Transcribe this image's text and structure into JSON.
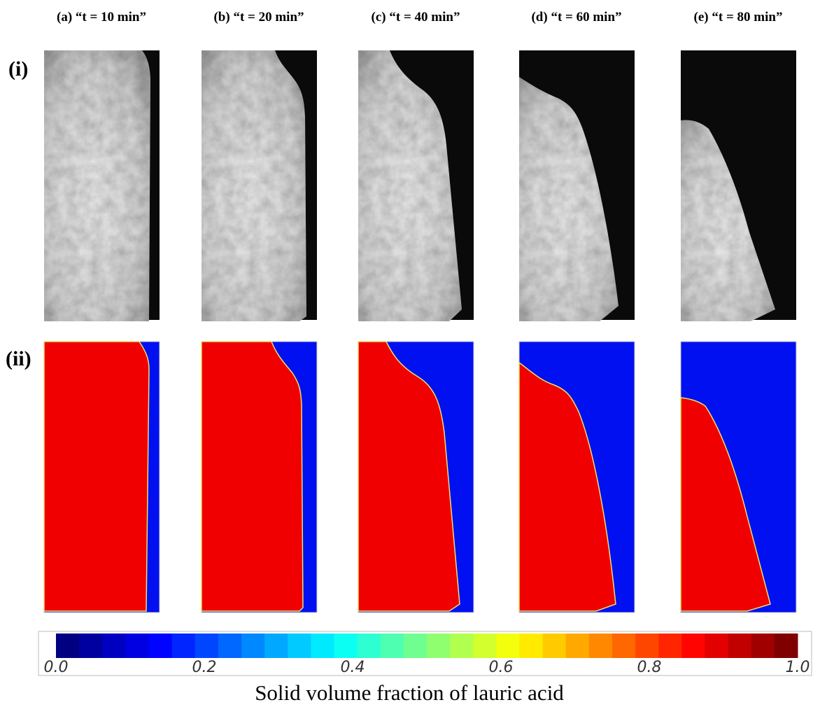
{
  "columns": [
    "(a) “t = 10 min”",
    "(b) “t = 20 min”",
    "(c) “t = 40 min”",
    "(d) “t = 60 min”",
    "(e) “t = 80 min”"
  ],
  "rows": [
    "(i)",
    "(ii)"
  ],
  "colorbar": {
    "ticks": [
      "0.0",
      "0.2",
      "0.4",
      "0.6",
      "0.8",
      "1.0"
    ],
    "title": "Solid volume fraction of lauric acid"
  }
}
